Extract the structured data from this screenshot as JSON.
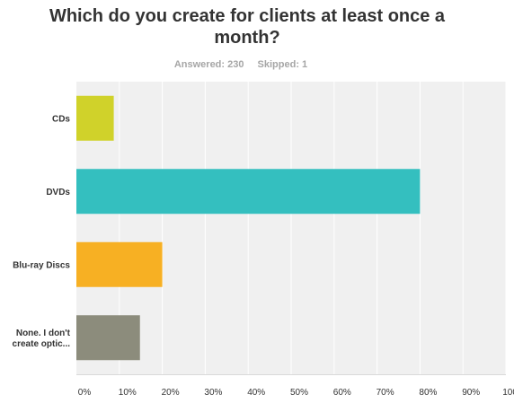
{
  "question": {
    "title": "Which  do you create for clients at least once a month?",
    "answered": "Answered: 230",
    "skipped": "Skipped: 1"
  },
  "colors": {
    "plot_bg": "#f0f0f0",
    "grid": "#ffffff",
    "axis": "#d9d9d9"
  },
  "chart_data": {
    "type": "bar",
    "orientation": "horizontal",
    "categories": [
      [
        "CDs"
      ],
      [
        "DVDs"
      ],
      [
        "Blu-ray Discs"
      ],
      [
        "None. I don't",
        "create optic..."
      ]
    ],
    "values": [
      8.7,
      80.0,
      20.0,
      14.8
    ],
    "bar_colors": [
      "#d0d22a",
      "#34bfbf",
      "#f7b023",
      "#8c8c7c"
    ],
    "xlim": [
      0,
      100
    ],
    "xticks": [
      0,
      10,
      20,
      30,
      40,
      50,
      60,
      70,
      80,
      90,
      100
    ],
    "xtick_labels": [
      "0%",
      "10%",
      "20%",
      "30%",
      "40%",
      "50%",
      "60%",
      "70%",
      "80%",
      "90%",
      "100%"
    ],
    "grid": true
  }
}
